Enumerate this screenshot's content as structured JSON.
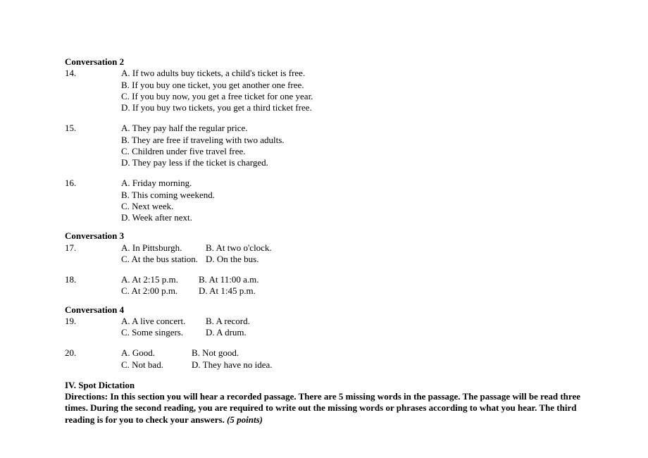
{
  "conversations": [
    {
      "title": "Conversation   2",
      "questions": [
        {
          "num": "14.",
          "layout": "stack",
          "options": [
            "A. If two adults buy tickets, a child's ticket is free.",
            "B. If you buy one ticket, you get another one free.",
            "C. If you buy now, you get a free ticket for one year.",
            "D. If you buy two tickets, you get a third ticket free."
          ]
        },
        {
          "num": "15.",
          "layout": "stack",
          "options": [
            "A. They pay half the regular price.",
            "B. They are free if traveling with two adults.",
            "C. Children under five travel free.",
            "D. They pay less if the ticket is charged."
          ]
        },
        {
          "num": "16.",
          "layout": "stack",
          "options": [
            "A. Friday morning.",
            "B. This coming weekend.",
            "C. Next week.",
            "D. Week after next."
          ]
        }
      ]
    },
    {
      "title": "Conversation   3",
      "questions": [
        {
          "num": "17.",
          "layout": "grid",
          "col1w": 120,
          "rows": [
            [
              "A. In Pittsburgh.",
              "B. At two o'clock."
            ],
            [
              "C. At the bus station.",
              "D. On the bus."
            ]
          ]
        },
        {
          "num": "18.",
          "layout": "grid",
          "col1w": 110,
          "rows": [
            [
              "A. At 2:15 p.m.",
              "B. At 11:00 a.m."
            ],
            [
              "C. At 2:00 p.m.",
              "D. At 1:45 p.m."
            ]
          ]
        }
      ]
    },
    {
      "title": "Conversation   4",
      "questions": [
        {
          "num": "19.",
          "layout": "grid",
          "col1w": 120,
          "rows": [
            [
              "A. A live concert.",
              "B. A record."
            ],
            [
              "C. Some singers.",
              "D. A drum."
            ]
          ]
        },
        {
          "num": "20.",
          "layout": "grid",
          "col1w": 100,
          "rows": [
            [
              "A. Good.",
              "B. Not good."
            ],
            [
              "C. Not bad.",
              "D. They have no idea."
            ]
          ]
        }
      ]
    }
  ],
  "spot": {
    "title": "IV. Spot Dictation",
    "directions_bold": "Directions: In this section you will hear a recorded passage. There are 5 missing words in the passage. The passage will be read three times. During the second reading, you are required to write out the missing words or phrases according to what you hear. The third reading is for you to check your answers.",
    "points": " (5 points)"
  }
}
